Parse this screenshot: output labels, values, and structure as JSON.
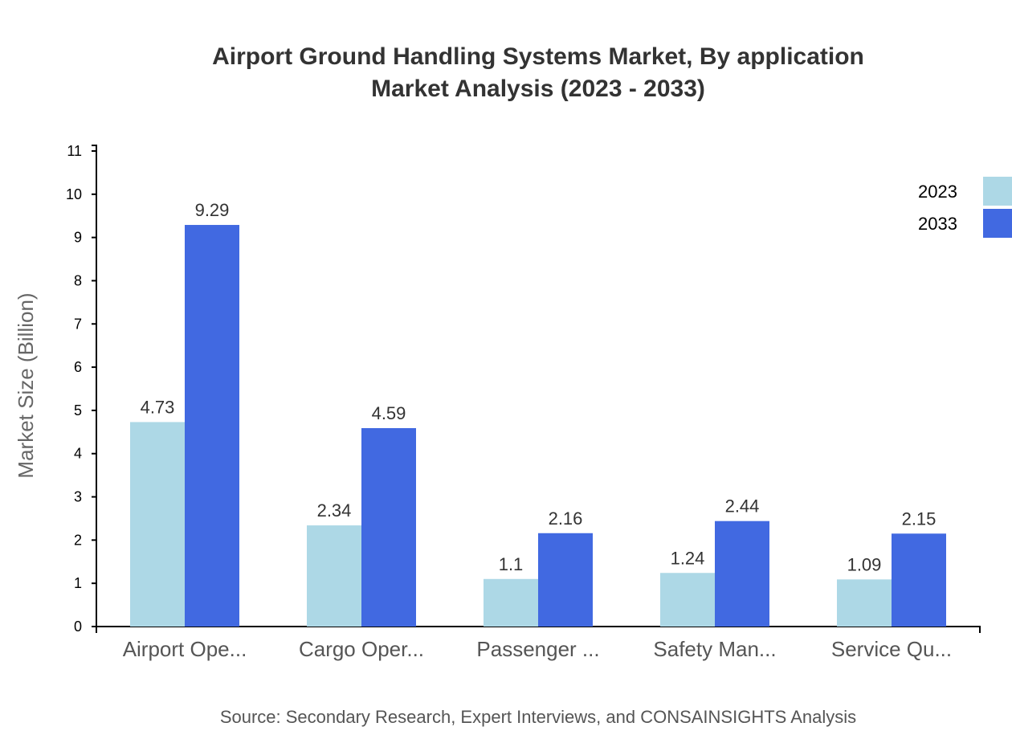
{
  "chart_data": {
    "type": "bar",
    "title": "Airport Ground Handling Systems Market, By application",
    "subtitle": "Market Analysis (2023 - 2033)",
    "ylabel": "Market Size (Billion)",
    "xlabel": "",
    "ylim": [
      0,
      11
    ],
    "yticks": [
      0,
      1,
      2,
      3,
      4,
      5,
      6,
      7,
      8,
      9,
      10,
      11
    ],
    "grid": false,
    "legend_position": "top-right",
    "categories": [
      "Airport Ope...",
      "Cargo Oper...",
      "Passenger ...",
      "Safety Man...",
      "Service Qu..."
    ],
    "series": [
      {
        "name": "2023",
        "color": "#add8e6",
        "values": [
          4.73,
          2.34,
          1.1,
          1.24,
          1.09
        ]
      },
      {
        "name": "2033",
        "color": "#4169e1",
        "values": [
          9.29,
          4.59,
          2.16,
          2.44,
          2.15
        ]
      }
    ],
    "source": "Source: Secondary Research, Expert Interviews, and CONSAINSIGHTS Analysis"
  }
}
